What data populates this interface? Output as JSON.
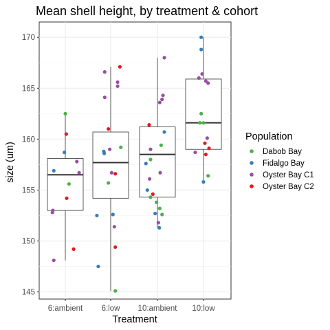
{
  "chart_data": {
    "type": "box",
    "title": "Mean shell height, by treatment & cohort",
    "xlabel": "Treatment",
    "ylabel": "size (um)",
    "ylim": [
      144.3,
      171.5
    ],
    "yticks": [
      145,
      150,
      155,
      160,
      165,
      170
    ],
    "categories": [
      "6:ambient",
      "6:low",
      "10:ambient",
      "10:low"
    ],
    "grid": true,
    "legend_position": "right",
    "legend": {
      "title": "Population",
      "entries": [
        {
          "name": "Dabob Bay",
          "color": "#4daf4a"
        },
        {
          "name": "Fidalgo Bay",
          "color": "#377eb8"
        },
        {
          "name": "Oyster Bay C1",
          "color": "#984ea3"
        },
        {
          "name": "Oyster Bay C2",
          "color": "#e41a1c"
        }
      ]
    },
    "boxes": [
      {
        "category": "6:ambient",
        "whisker_low": 148.1,
        "q1": 153.0,
        "median": 156.5,
        "q3": 158.1,
        "whisker_high": 162.5
      },
      {
        "category": "6:low",
        "whisker_low": 145.1,
        "q1": 154.2,
        "median": 157.7,
        "q3": 160.7,
        "whisker_high": 167.1
      },
      {
        "category": "10:ambient",
        "whisker_low": 151.3,
        "q1": 154.3,
        "median": 158.5,
        "q3": 161.2,
        "whisker_high": 168.0
      },
      {
        "category": "10:low",
        "whisker_low": 155.8,
        "q1": 159.0,
        "median": 161.6,
        "q3": 165.9,
        "whisker_high": 170.0
      }
    ],
    "points": [
      {
        "category": "6:ambient",
        "jitter": 0.0,
        "y": 162.5,
        "population": "Dabob Bay"
      },
      {
        "category": "6:ambient",
        "jitter": -0.25,
        "y": 156.9,
        "population": "Fidalgo Bay"
      },
      {
        "category": "6:ambient",
        "jitter": 0.08,
        "y": 155.6,
        "population": "Dabob Bay"
      },
      {
        "category": "6:ambient",
        "jitter": -0.02,
        "y": 158.7,
        "population": "Fidalgo Bay"
      },
      {
        "category": "6:ambient",
        "jitter": 0.25,
        "y": 157.8,
        "population": "Oyster Bay C1"
      },
      {
        "category": "6:ambient",
        "jitter": 0.3,
        "y": 156.7,
        "population": "Oyster Bay C1"
      },
      {
        "category": "6:ambient",
        "jitter": -0.27,
        "y": 153.0,
        "population": "Oyster Bay C1"
      },
      {
        "category": "6:ambient",
        "jitter": -0.28,
        "y": 152.8,
        "population": "Oyster Bay C1"
      },
      {
        "category": "6:ambient",
        "jitter": -0.25,
        "y": 148.1,
        "population": "Oyster Bay C1"
      },
      {
        "category": "6:ambient",
        "jitter": 0.02,
        "y": 160.5,
        "population": "Oyster Bay C2"
      },
      {
        "category": "6:ambient",
        "jitter": 0.03,
        "y": 154.2,
        "population": "Oyster Bay C2"
      },
      {
        "category": "6:ambient",
        "jitter": 0.18,
        "y": 149.2,
        "population": "Oyster Bay C2"
      },
      {
        "category": "6:low",
        "jitter": 0.2,
        "y": 167.1,
        "population": "Oyster Bay C2"
      },
      {
        "category": "6:low",
        "jitter": -0.13,
        "y": 166.6,
        "population": "Oyster Bay C1"
      },
      {
        "category": "6:low",
        "jitter": 0.15,
        "y": 165.6,
        "population": "Oyster Bay C1"
      },
      {
        "category": "6:low",
        "jitter": 0.15,
        "y": 165.2,
        "population": "Oyster Bay C1"
      },
      {
        "category": "6:low",
        "jitter": -0.13,
        "y": 164.1,
        "population": "Oyster Bay C1"
      },
      {
        "category": "6:low",
        "jitter": -0.05,
        "y": 161.0,
        "population": "Oyster Bay C2"
      },
      {
        "category": "6:low",
        "jitter": 0.22,
        "y": 159.2,
        "population": "Dabob Bay"
      },
      {
        "category": "6:low",
        "jitter": -0.02,
        "y": 159.0,
        "population": "Oyster Bay C1"
      },
      {
        "category": "6:low",
        "jitter": -0.15,
        "y": 158.8,
        "population": "Fidalgo Bay"
      },
      {
        "category": "6:low",
        "jitter": -0.14,
        "y": 158.6,
        "population": "Fidalgo Bay"
      },
      {
        "category": "6:low",
        "jitter": 0.02,
        "y": 156.7,
        "population": "Oyster Bay C1"
      },
      {
        "category": "6:low",
        "jitter": 0.1,
        "y": 156.6,
        "population": "Oyster Bay C2"
      },
      {
        "category": "6:low",
        "jitter": -0.05,
        "y": 155.7,
        "population": "Dabob Bay"
      },
      {
        "category": "6:low",
        "jitter": -0.3,
        "y": 152.5,
        "population": "Fidalgo Bay"
      },
      {
        "category": "6:low",
        "jitter": 0.05,
        "y": 152.6,
        "population": "Fidalgo Bay"
      },
      {
        "category": "6:low",
        "jitter": 0.08,
        "y": 151.4,
        "population": "Oyster Bay C1"
      },
      {
        "category": "6:low",
        "jitter": 0.1,
        "y": 149.4,
        "population": "Oyster Bay C2"
      },
      {
        "category": "6:low",
        "jitter": -0.27,
        "y": 147.5,
        "population": "Fidalgo Bay"
      },
      {
        "category": "6:low",
        "jitter": 0.1,
        "y": 145.1,
        "population": "Dabob Bay"
      },
      {
        "category": "10:ambient",
        "jitter": 0.15,
        "y": 168.0,
        "population": "Oyster Bay C1"
      },
      {
        "category": "10:ambient",
        "jitter": 0.12,
        "y": 164.3,
        "population": "Oyster Bay C1"
      },
      {
        "category": "10:ambient",
        "jitter": 0.1,
        "y": 163.9,
        "population": "Oyster Bay C1"
      },
      {
        "category": "10:ambient",
        "jitter": 0.05,
        "y": 163.6,
        "population": "Oyster Bay C1"
      },
      {
        "category": "10:ambient",
        "jitter": -0.18,
        "y": 161.4,
        "population": "Oyster Bay C2"
      },
      {
        "category": "10:ambient",
        "jitter": 0.15,
        "y": 160.7,
        "population": "Fidalgo Bay"
      },
      {
        "category": "10:ambient",
        "jitter": -0.15,
        "y": 159.0,
        "population": "Oyster Bay C1"
      },
      {
        "category": "10:ambient",
        "jitter": 0.08,
        "y": 159.4,
        "population": "Dabob Bay"
      },
      {
        "category": "10:ambient",
        "jitter": -0.15,
        "y": 158.0,
        "population": "Dabob Bay"
      },
      {
        "category": "10:ambient",
        "jitter": -0.25,
        "y": 157.6,
        "population": "Fidalgo Bay"
      },
      {
        "category": "10:ambient",
        "jitter": 0.06,
        "y": 156.7,
        "population": "Oyster Bay C1"
      },
      {
        "category": "10:ambient",
        "jitter": -0.17,
        "y": 156.1,
        "population": "Oyster Bay C1"
      },
      {
        "category": "10:ambient",
        "jitter": -0.22,
        "y": 155.0,
        "population": "Fidalgo Bay"
      },
      {
        "category": "10:ambient",
        "jitter": -0.1,
        "y": 154.6,
        "population": "Oyster Bay C2"
      },
      {
        "category": "10:ambient",
        "jitter": -0.15,
        "y": 154.3,
        "population": "Dabob Bay"
      },
      {
        "category": "10:ambient",
        "jitter": -0.02,
        "y": 153.8,
        "population": "Dabob Bay"
      },
      {
        "category": "10:ambient",
        "jitter": 0.05,
        "y": 153.2,
        "population": "Dabob Bay"
      },
      {
        "category": "10:ambient",
        "jitter": -0.05,
        "y": 152.7,
        "population": "Fidalgo Bay"
      },
      {
        "category": "10:ambient",
        "jitter": 0.1,
        "y": 152.6,
        "population": "Dabob Bay"
      },
      {
        "category": "10:ambient",
        "jitter": 0.02,
        "y": 151.8,
        "population": "Oyster Bay C1"
      },
      {
        "category": "10:ambient",
        "jitter": 0.04,
        "y": 151.3,
        "population": "Fidalgo Bay"
      },
      {
        "category": "10:low",
        "jitter": -0.05,
        "y": 170.0,
        "population": "Fidalgo Bay"
      },
      {
        "category": "10:low",
        "jitter": -0.05,
        "y": 168.8,
        "population": "Fidalgo Bay"
      },
      {
        "category": "10:low",
        "jitter": -0.03,
        "y": 166.4,
        "population": "Oyster Bay C1"
      },
      {
        "category": "10:low",
        "jitter": -0.1,
        "y": 166.0,
        "population": "Oyster Bay C1"
      },
      {
        "category": "10:low",
        "jitter": 0.05,
        "y": 165.7,
        "population": "Oyster Bay C1"
      },
      {
        "category": "10:low",
        "jitter": 0.1,
        "y": 165.5,
        "population": "Oyster Bay C1"
      },
      {
        "category": "10:low",
        "jitter": -0.05,
        "y": 162.5,
        "population": "Dabob Bay"
      },
      {
        "category": "10:low",
        "jitter": -0.08,
        "y": 161.6,
        "population": "Dabob Bay"
      },
      {
        "category": "10:low",
        "jitter": 0.0,
        "y": 161.6,
        "population": "Dabob Bay"
      },
      {
        "category": "10:low",
        "jitter": 0.08,
        "y": 160.1,
        "population": "Oyster Bay C1"
      },
      {
        "category": "10:low",
        "jitter": 0.03,
        "y": 159.6,
        "population": "Oyster Bay C2"
      },
      {
        "category": "10:low",
        "jitter": 0.12,
        "y": 159.1,
        "population": "Oyster Bay C2"
      },
      {
        "category": "10:low",
        "jitter": -0.18,
        "y": 158.7,
        "population": "Oyster Bay C1"
      },
      {
        "category": "10:low",
        "jitter": 0.05,
        "y": 158.5,
        "population": "Oyster Bay C2"
      },
      {
        "category": "10:low",
        "jitter": 0.1,
        "y": 156.4,
        "population": "Dabob Bay"
      },
      {
        "category": "10:low",
        "jitter": 0.0,
        "y": 155.8,
        "population": "Fidalgo Bay"
      }
    ]
  }
}
